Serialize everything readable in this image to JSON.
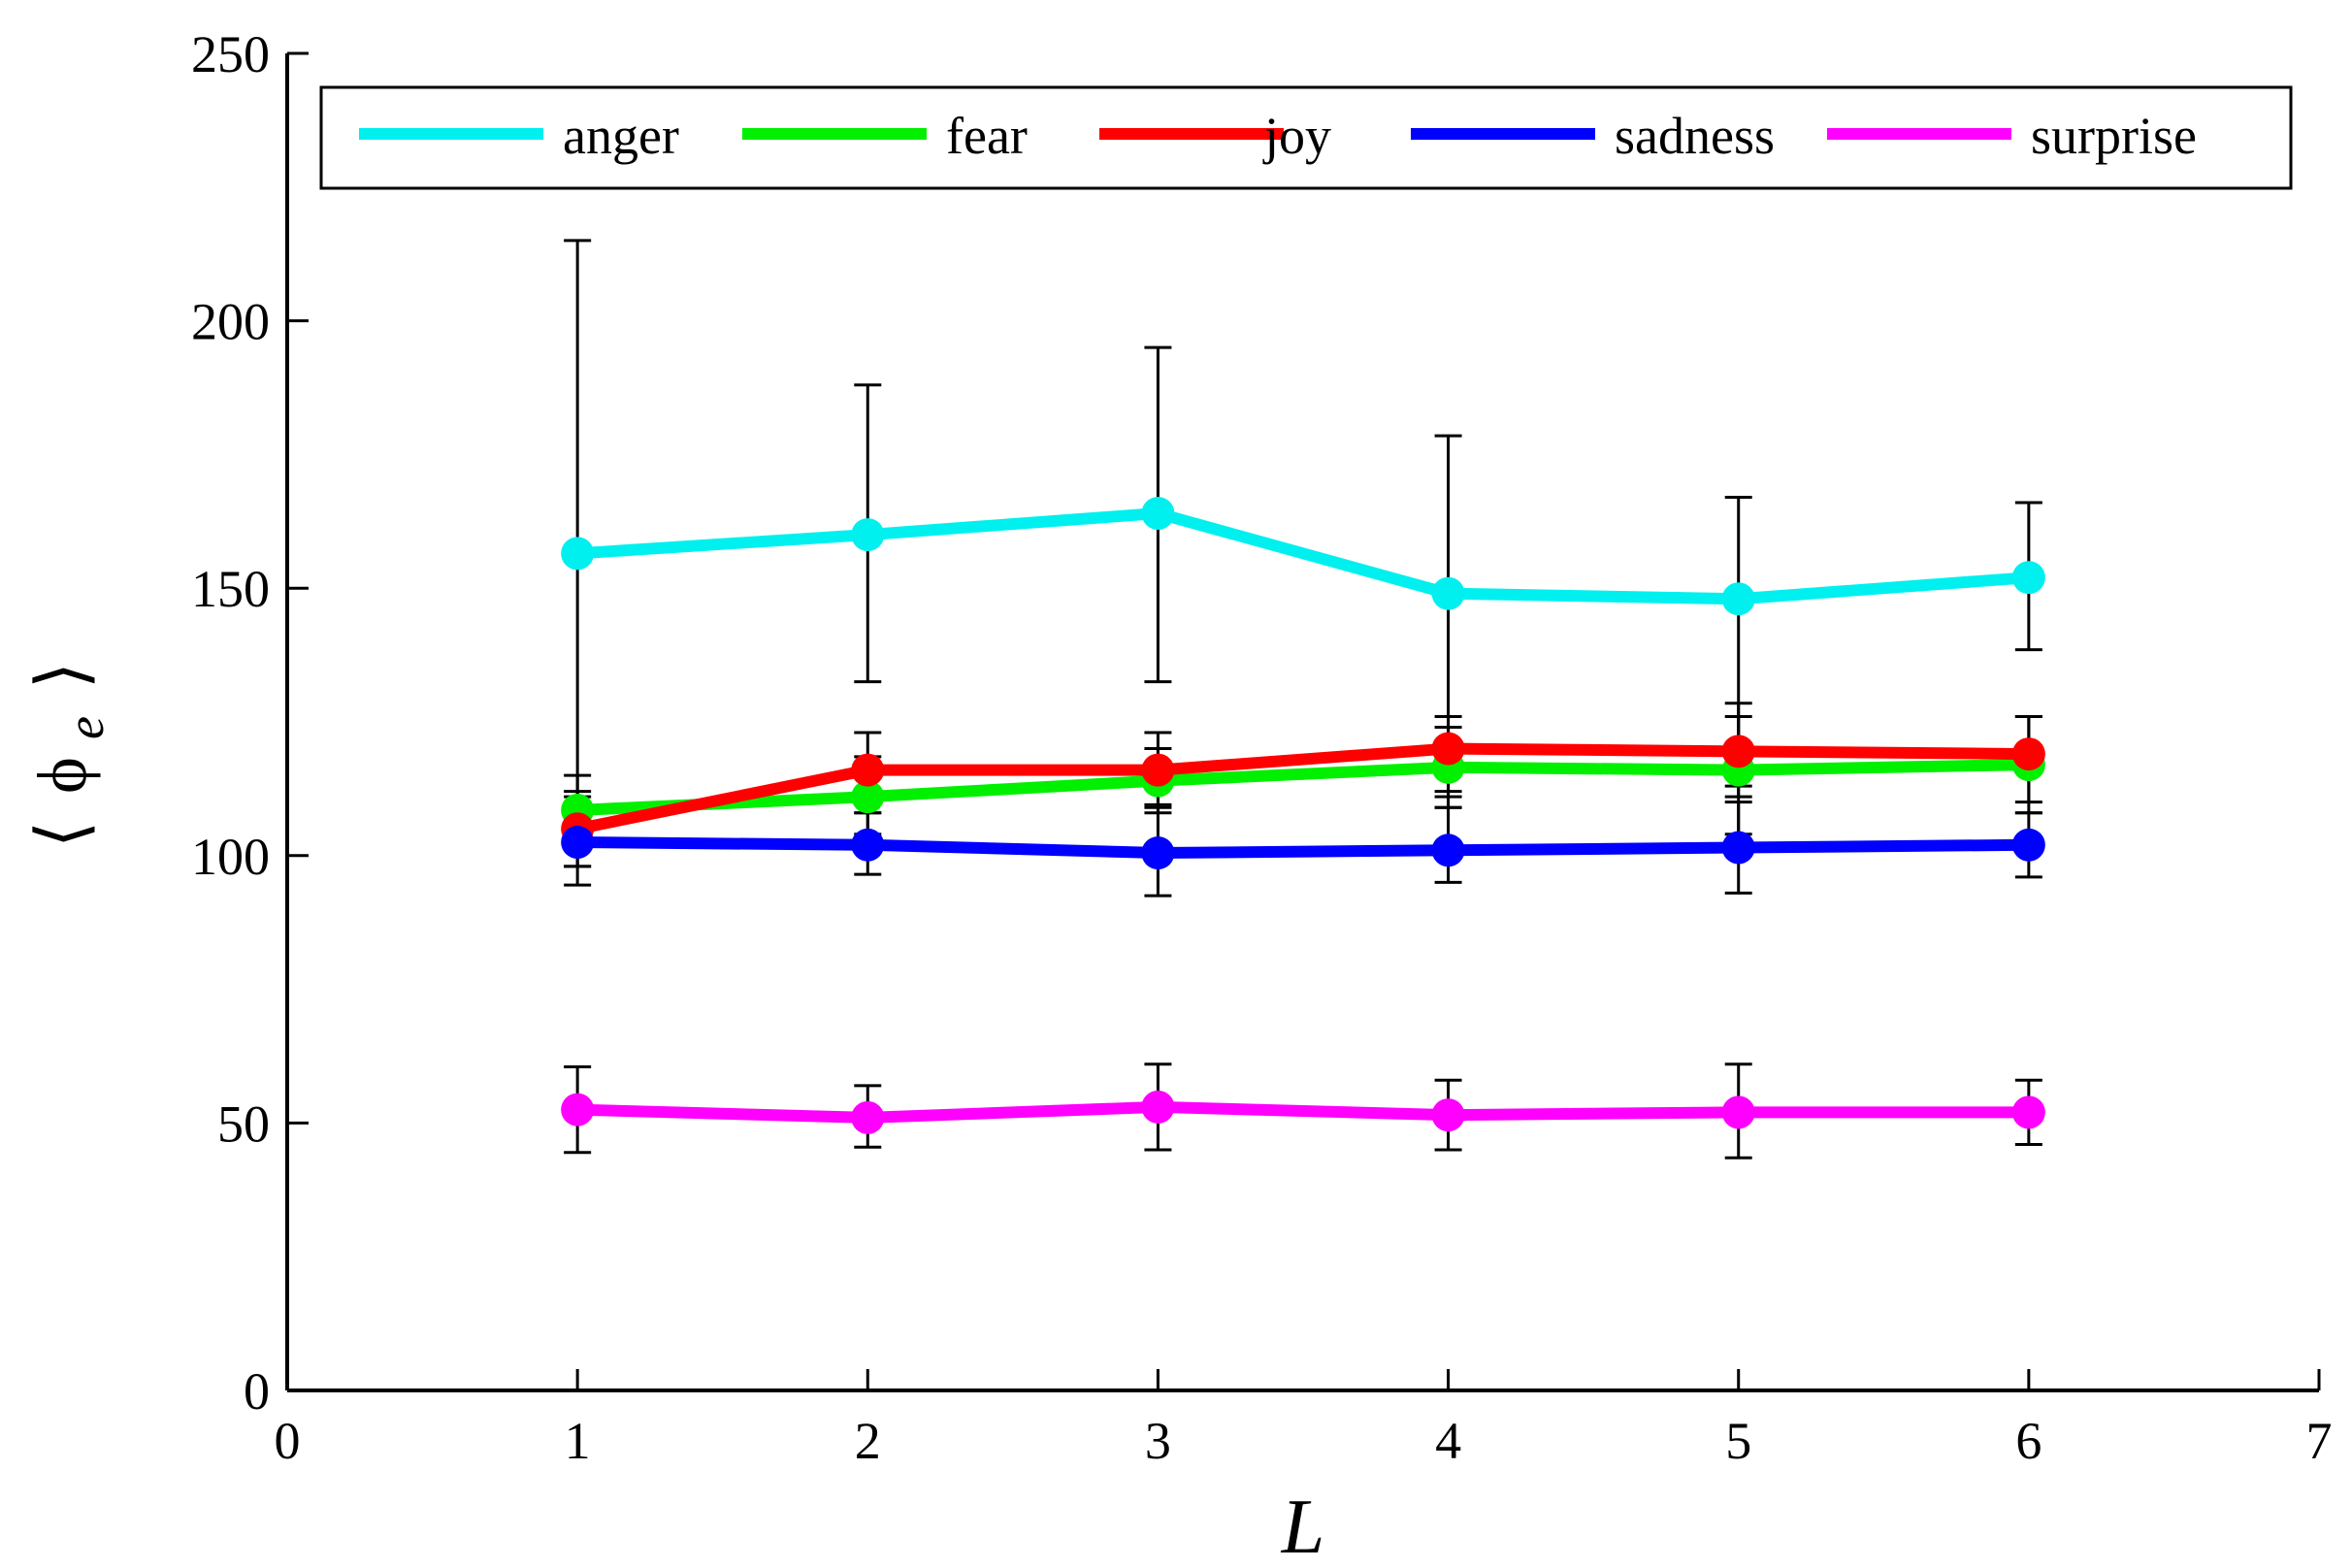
{
  "chart_data": {
    "type": "line",
    "title": "",
    "xlabel": "L",
    "ylabel": {
      "open_bracket": "⟨",
      "symbol": "ϕ",
      "subscript": "e",
      "close_bracket": "⟩"
    },
    "xlim": [
      0,
      7
    ],
    "ylim": [
      0,
      250
    ],
    "x_ticks": [
      0,
      1,
      2,
      3,
      4,
      5,
      6,
      7
    ],
    "y_ticks": [
      0,
      50,
      100,
      150,
      200,
      250
    ],
    "x": [
      1,
      2,
      3,
      4,
      5,
      6
    ],
    "grid": false,
    "legend_position": "top",
    "series": [
      {
        "name": "anger",
        "color": "#00f0f0",
        "values": [
          156.5,
          160,
          164,
          149,
          148,
          152
        ],
        "err_low": [
          98,
          132.5,
          132.5,
          112,
          113,
          138.5
        ],
        "err_high": [
          215,
          188,
          195,
          178.5,
          167,
          166
        ]
      },
      {
        "name": "fear",
        "color": "#00f000",
        "values": [
          108.5,
          111,
          114,
          116.5,
          116,
          117
        ],
        "err_low": [
          103,
          104,
          108,
          109,
          104,
          108
        ],
        "err_high": [
          112,
          118.5,
          120,
          124,
          126,
          126
        ]
      },
      {
        "name": "joy",
        "color": "#ff0000",
        "values": [
          105,
          116,
          116,
          120,
          119.5,
          119
        ],
        "err_low": [
          98,
          108,
          109.5,
          111,
          111,
          110
        ],
        "err_high": [
          115,
          123,
          123,
          126,
          128.5,
          126
        ]
      },
      {
        "name": "sadness",
        "color": "#0000ff",
        "values": [
          102.5,
          102,
          100.5,
          101,
          101.5,
          102
        ],
        "err_low": [
          94.5,
          96.5,
          92.5,
          95,
          93,
          96
        ],
        "err_high": [
          111,
          108,
          109,
          109,
          110,
          108
        ]
      },
      {
        "name": "surprise",
        "color": "#ff00ff",
        "values": [
          52.5,
          51,
          53,
          51.5,
          52,
          52
        ],
        "err_low": [
          44.5,
          45.5,
          45,
          45,
          43.5,
          46
        ],
        "err_high": [
          60.5,
          57,
          61,
          58,
          61,
          58
        ]
      }
    ]
  }
}
